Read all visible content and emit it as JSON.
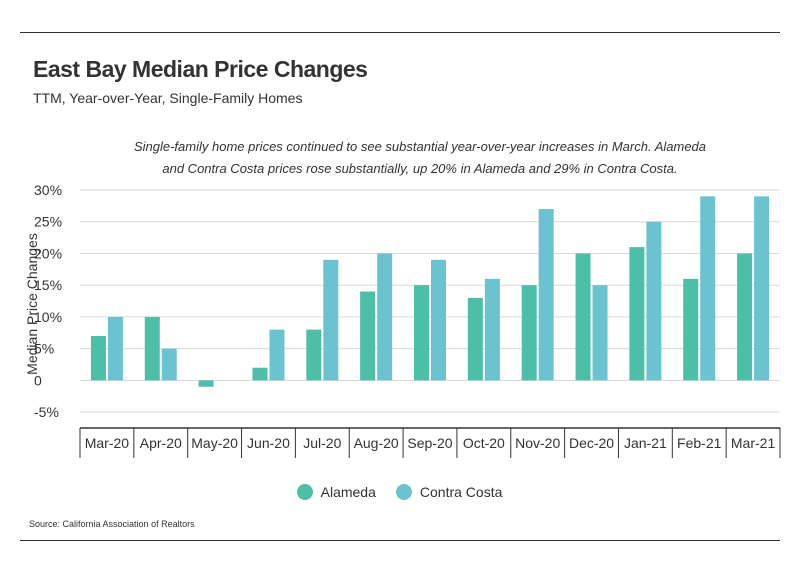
{
  "header": {
    "title": "East Bay Median Price Changes",
    "subtitle": "TTM, Year-over-Year, Single-Family Homes"
  },
  "annotation": {
    "line1": "Single-family home prices continued to see substantial year-over-year increases in March. Alameda",
    "line2": "and Contra Costa prices rose substantially, up 20% in Alameda and 29% in Contra Costa."
  },
  "source": "Source:  California Association of Realtors",
  "colors": {
    "alameda": "#4dbfa6",
    "contra_costa": "#6bc3cf",
    "grid": "#d9d9d9",
    "axis": "#333333"
  },
  "chart_data": {
    "type": "bar",
    "title": "East Bay Median Price Changes",
    "ylabel": "Median Price Changes",
    "xlabel": "",
    "ylim": [
      -7.5,
      30
    ],
    "yticks": [
      -5,
      0,
      5,
      10,
      15,
      20,
      25,
      30
    ],
    "ytick_labels": [
      "-5%",
      "0",
      "5%",
      "10%",
      "15%",
      "20%",
      "25%",
      "30%"
    ],
    "categories": [
      "Mar-20",
      "Apr-20",
      "May-20",
      "Jun-20",
      "Jul-20",
      "Aug-20",
      "Sep-20",
      "Oct-20",
      "Nov-20",
      "Dec-20",
      "Jan-21",
      "Feb-21",
      "Mar-21"
    ],
    "series": [
      {
        "name": "Alameda",
        "values": [
          7,
          10,
          -1,
          2,
          8,
          14,
          15,
          13,
          15,
          20,
          21,
          16,
          20
        ]
      },
      {
        "name": "Contra Costa",
        "values": [
          10,
          5,
          0,
          8,
          19,
          20,
          19,
          16,
          27,
          15,
          25,
          29,
          29
        ]
      }
    ],
    "legend_position": "bottom-center"
  }
}
